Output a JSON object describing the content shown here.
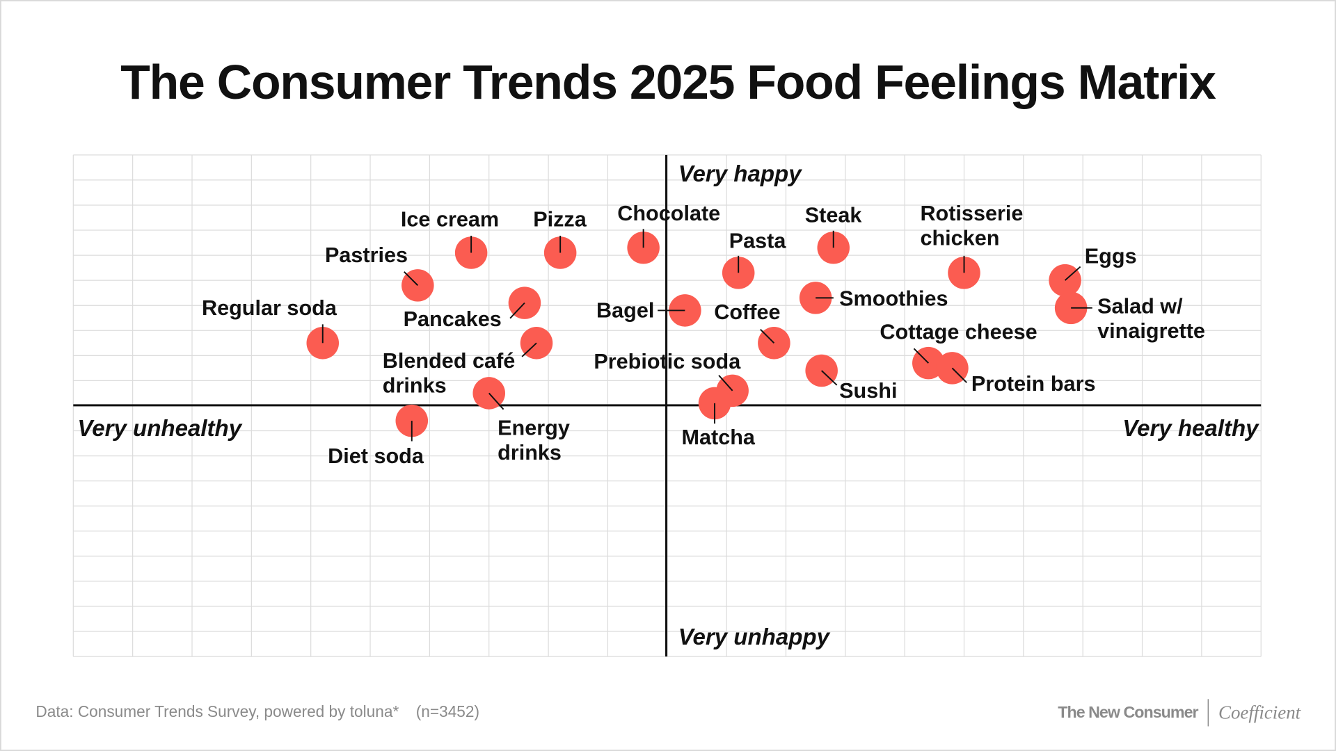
{
  "title": "The Consumer Trends 2025 Food Feelings Matrix",
  "footer": {
    "source": "Data: Consumer Trends Survey, powered by toluna*",
    "sample": "(n=3452)",
    "brand_left": "The New Consumer",
    "brand_right": "Coefficient"
  },
  "colors": {
    "dot": "#fb5c51",
    "axis": "#111111",
    "grid": "#dcdcdc",
    "frame": "#d9d9d9"
  },
  "chart_data": {
    "type": "scatter",
    "title": "The Consumer Trends 2025 Food Feelings Matrix",
    "axis_labels": {
      "left": "Very unhealthy",
      "right": "Very healthy",
      "top": "Very happy",
      "bottom": "Very unhappy"
    },
    "xlim": [
      -10,
      10
    ],
    "ylim": [
      -10,
      10
    ],
    "grid": true,
    "points": [
      {
        "name": "Regular soda",
        "lines": [
          "Regular soda"
        ],
        "x": -5.8,
        "y": 2.5
      },
      {
        "name": "Pastries",
        "lines": [
          "Pastries"
        ],
        "x": -4.2,
        "y": 4.8
      },
      {
        "name": "Ice cream",
        "lines": [
          "Ice cream"
        ],
        "x": -3.3,
        "y": 6.1
      },
      {
        "name": "Pizza",
        "lines": [
          "Pizza"
        ],
        "x": -1.8,
        "y": 6.1
      },
      {
        "name": "Chocolate",
        "lines": [
          "Chocolate"
        ],
        "x": -0.4,
        "y": 6.3
      },
      {
        "name": "Pancakes",
        "lines": [
          "Pancakes"
        ],
        "x": -2.4,
        "y": 4.1
      },
      {
        "name": "Blended café drinks",
        "lines": [
          "Blended café",
          "drinks"
        ],
        "x": -2.2,
        "y": 2.5
      },
      {
        "name": "Energy drinks",
        "lines": [
          "Energy",
          "drinks"
        ],
        "x": -3.0,
        "y": 0.5
      },
      {
        "name": "Diet soda",
        "lines": [
          "Diet soda"
        ],
        "x": -4.3,
        "y": -0.6
      },
      {
        "name": "Bagel",
        "lines": [
          "Bagel"
        ],
        "x": 0.3,
        "y": 3.8
      },
      {
        "name": "Pasta",
        "lines": [
          "Pasta"
        ],
        "x": 1.2,
        "y": 5.3
      },
      {
        "name": "Steak",
        "lines": [
          "Steak"
        ],
        "x": 2.8,
        "y": 6.3
      },
      {
        "name": "Smoothies",
        "lines": [
          "Smoothies"
        ],
        "x": 2.5,
        "y": 4.3
      },
      {
        "name": "Coffee",
        "lines": [
          "Coffee"
        ],
        "x": 1.8,
        "y": 2.5
      },
      {
        "name": "Sushi",
        "lines": [
          "Sushi"
        ],
        "x": 2.6,
        "y": 1.4
      },
      {
        "name": "Prebiotic soda",
        "lines": [
          "Prebiotic soda"
        ],
        "x": 1.1,
        "y": 0.6
      },
      {
        "name": "Matcha",
        "lines": [
          "Matcha"
        ],
        "x": 0.8,
        "y": 0.1
      },
      {
        "name": "Rotisserie chicken",
        "lines": [
          "Rotisserie",
          "chicken"
        ],
        "x": 5.0,
        "y": 5.3
      },
      {
        "name": "Cottage cheese",
        "lines": [
          "Cottage cheese"
        ],
        "x": 4.4,
        "y": 1.7
      },
      {
        "name": "Protein bars",
        "lines": [
          "Protein bars"
        ],
        "x": 4.8,
        "y": 1.5
      },
      {
        "name": "Eggs",
        "lines": [
          "Eggs"
        ],
        "x": 6.7,
        "y": 5.0
      },
      {
        "name": "Salad w/ vinaigrette",
        "lines": [
          "Salad w/",
          "vinaigrette"
        ],
        "x": 6.8,
        "y": 3.9
      }
    ]
  }
}
